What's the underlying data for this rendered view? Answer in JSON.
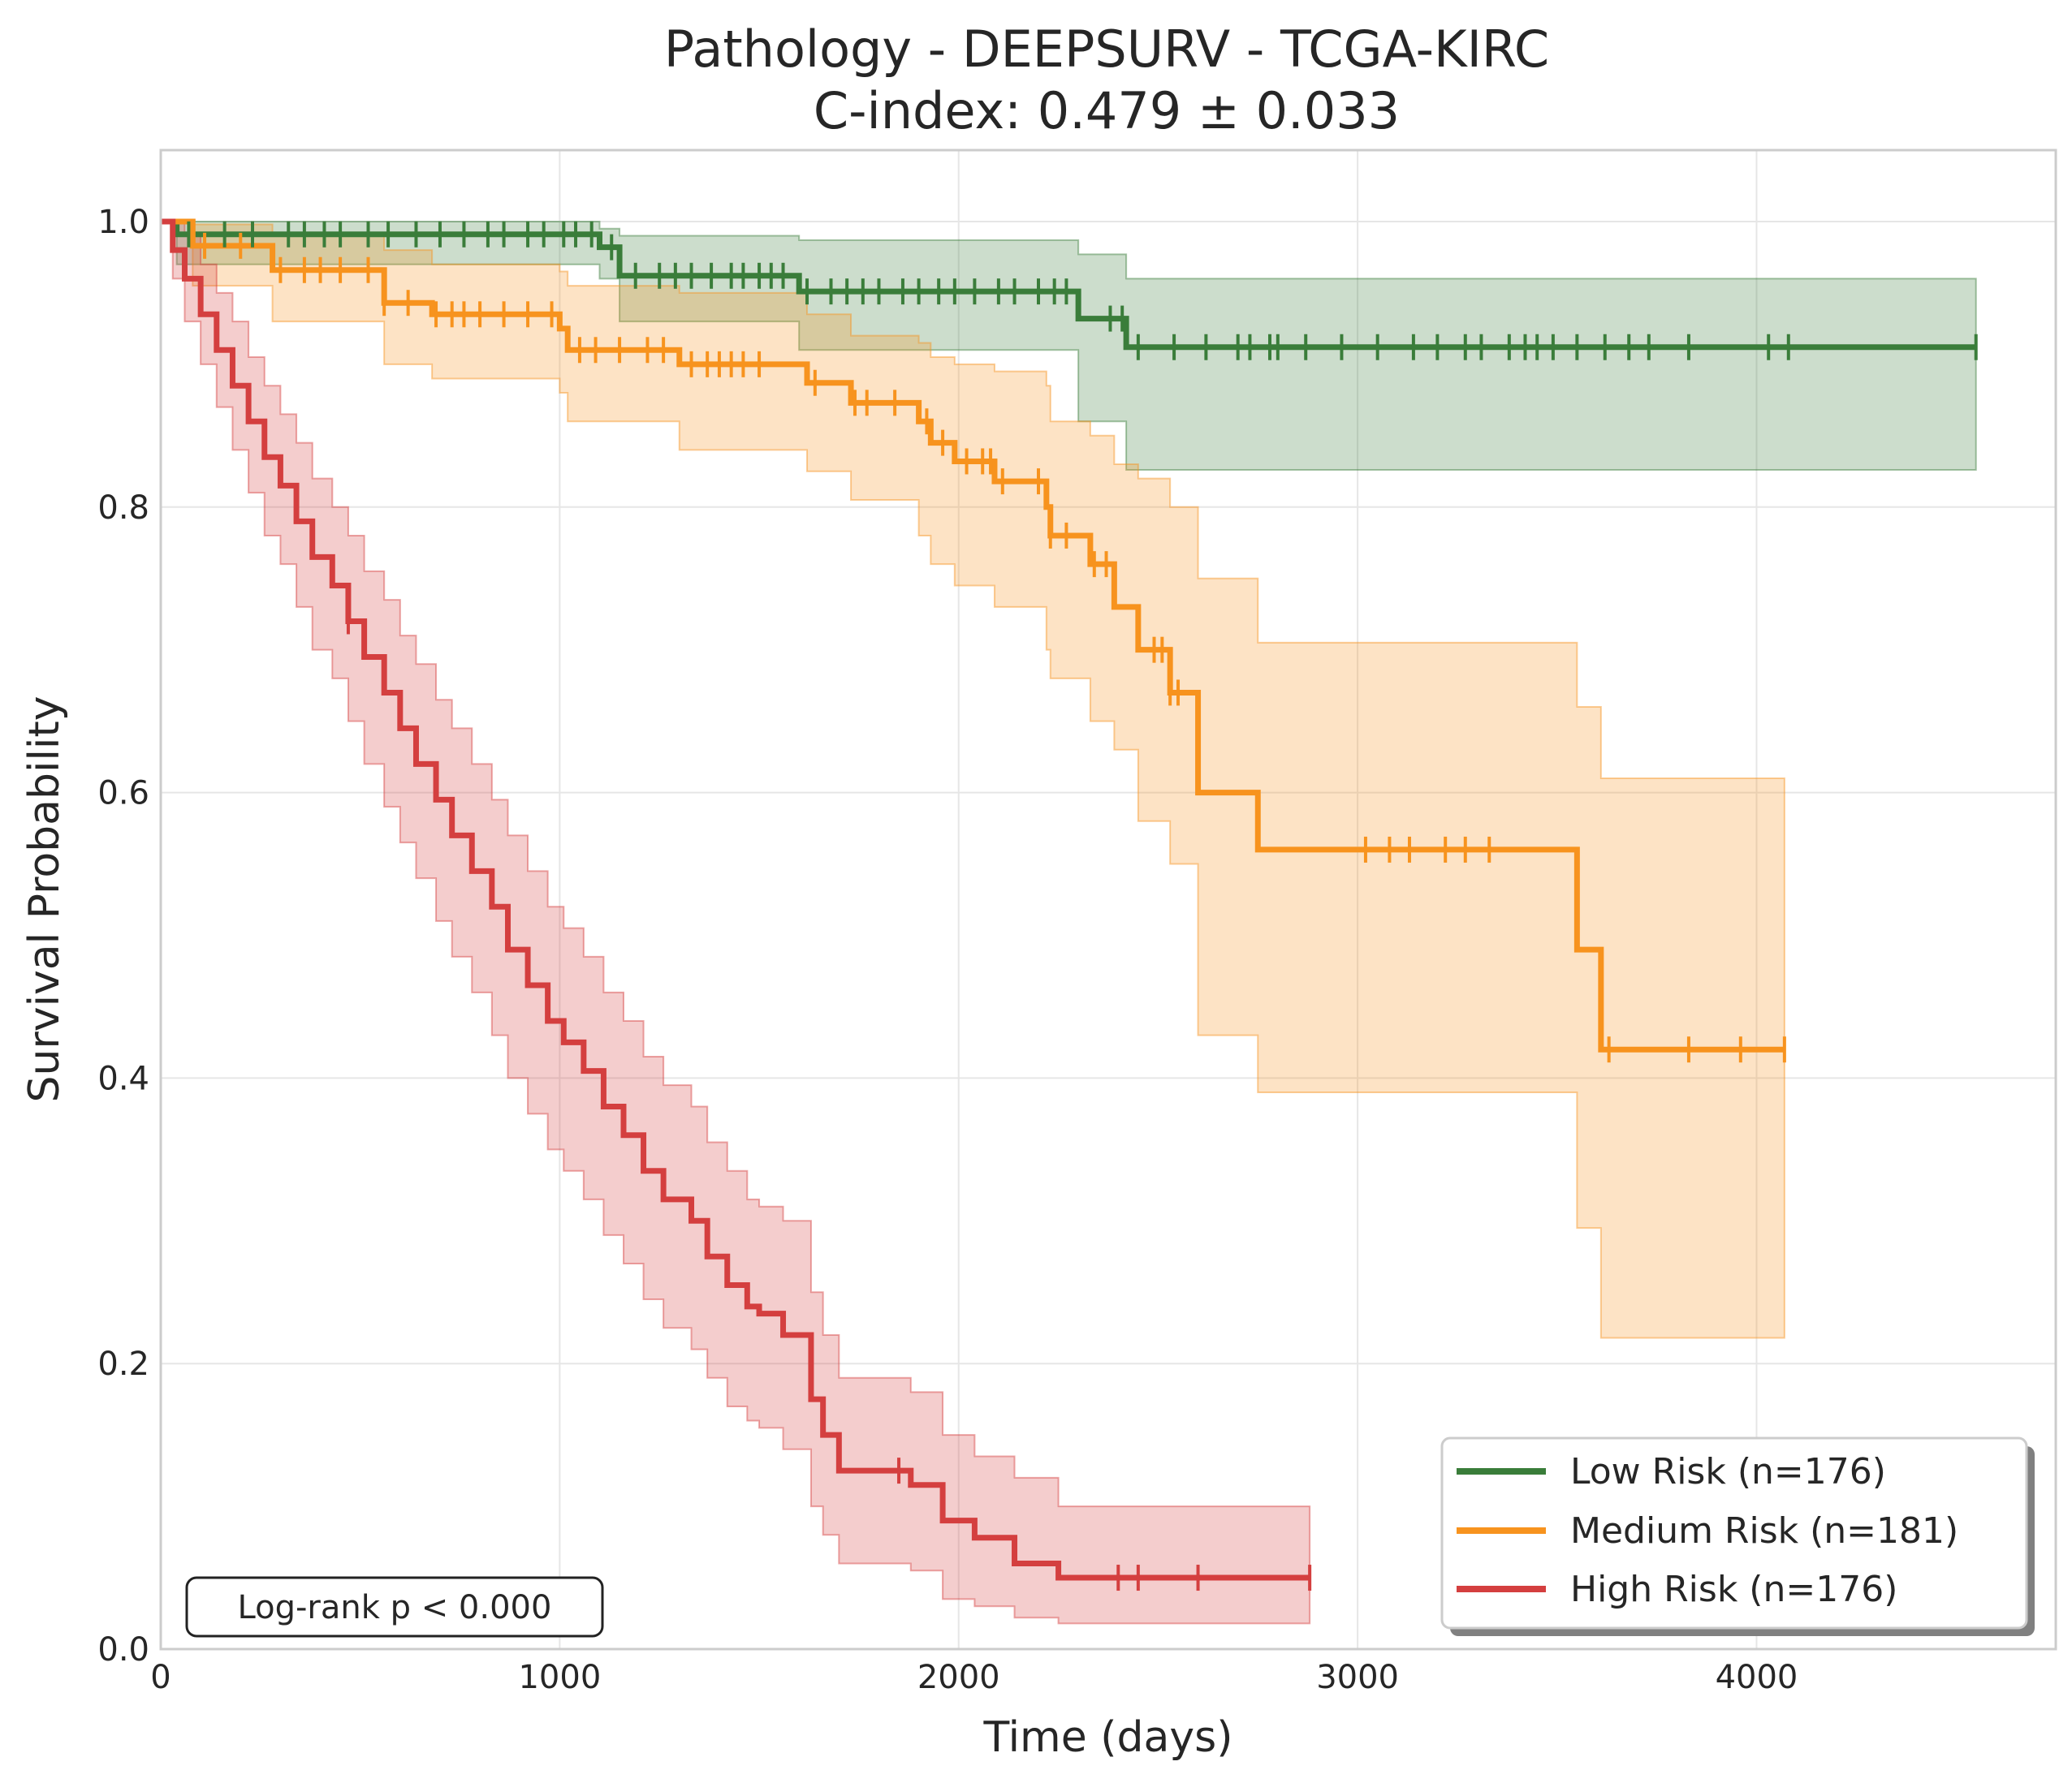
{
  "chart_data": {
    "type": "line",
    "title": "Pathology - DEEPSURV - TCGA-KIRC",
    "subtitle": "C-index: 0.479 ± 0.033",
    "xlabel": "Time (days)",
    "ylabel": "Survival Probability",
    "xlim": [
      0,
      4750
    ],
    "ylim": [
      0,
      1.05
    ],
    "x_ticks": [
      0,
      1000,
      2000,
      3000,
      4000
    ],
    "y_ticks": [
      0.0,
      0.2,
      0.4,
      0.6,
      0.8,
      1.0
    ],
    "x_tick_labels": [
      "0",
      "1000",
      "2000",
      "3000",
      "4000"
    ],
    "y_tick_labels": [
      "0.0",
      "0.2",
      "0.4",
      "0.6",
      "0.8",
      "1.0"
    ],
    "grid": true,
    "legend_position": "bottom-right",
    "annotation": "Log-rank p < 0.000",
    "series": [
      {
        "name": "Low Risk (n=176)",
        "color": "#3a7d3a",
        "x": [
          0,
          40,
          600,
          1100,
          1150,
          1600,
          2300,
          2420,
          4550
        ],
        "y": [
          1.0,
          0.991,
          0.991,
          0.982,
          0.962,
          0.951,
          0.932,
          0.912,
          0.912
        ],
        "ci_lower": [
          1.0,
          0.97,
          0.97,
          0.96,
          0.93,
          0.91,
          0.86,
          0.826,
          0.826
        ],
        "ci_upper": [
          1.0,
          1.0,
          1.0,
          0.995,
          0.99,
          0.987,
          0.977,
          0.96,
          0.96
        ],
        "censor_x": [
          70,
          160,
          230,
          320,
          360,
          410,
          450,
          520,
          570,
          640,
          700,
          760,
          820,
          860,
          920,
          960,
          1010,
          1040,
          1080,
          1130,
          1190,
          1250,
          1290,
          1330,
          1380,
          1430,
          1460,
          1500,
          1530,
          1560,
          1620,
          1680,
          1720,
          1760,
          1800,
          1860,
          1900,
          1950,
          1990,
          2040,
          2100,
          2140,
          2200,
          2240,
          2270,
          2380,
          2410,
          2450,
          2540,
          2620,
          2700,
          2730,
          2780,
          2800,
          2870,
          2960,
          3050,
          3140,
          3200,
          3270,
          3310,
          3380,
          3420,
          3450,
          3490,
          3550,
          3620,
          3680,
          3730,
          3830,
          4030,
          4080,
          4550
        ]
      },
      {
        "name": "Medium Risk (n=181)",
        "color": "#f7931e",
        "x": [
          0,
          80,
          280,
          560,
          680,
          1000,
          1020,
          1300,
          1550,
          1620,
          1730,
          1900,
          1930,
          1990,
          2090,
          2220,
          2230,
          2330,
          2390,
          2450,
          2530,
          2600,
          2750,
          3550,
          3610,
          4070
        ],
        "y": [
          1.0,
          0.983,
          0.966,
          0.943,
          0.935,
          0.925,
          0.91,
          0.9,
          0.9,
          0.887,
          0.873,
          0.86,
          0.845,
          0.832,
          0.818,
          0.8,
          0.78,
          0.76,
          0.73,
          0.7,
          0.67,
          0.6,
          0.56,
          0.49,
          0.42,
          0.42
        ],
        "ci_lower": [
          1.0,
          0.955,
          0.93,
          0.9,
          0.89,
          0.88,
          0.86,
          0.84,
          0.84,
          0.825,
          0.805,
          0.78,
          0.76,
          0.745,
          0.73,
          0.7,
          0.68,
          0.65,
          0.63,
          0.58,
          0.55,
          0.43,
          0.39,
          0.295,
          0.218,
          0.218
        ],
        "ci_upper": [
          1.0,
          0.998,
          0.99,
          0.98,
          0.97,
          0.965,
          0.955,
          0.95,
          0.95,
          0.935,
          0.92,
          0.915,
          0.905,
          0.9,
          0.895,
          0.885,
          0.86,
          0.85,
          0.83,
          0.82,
          0.8,
          0.75,
          0.705,
          0.66,
          0.61,
          0.61
        ],
        "censor_x": [
          110,
          200,
          300,
          360,
          400,
          450,
          520,
          560,
          620,
          690,
          730,
          760,
          800,
          860,
          920,
          980,
          1050,
          1090,
          1150,
          1220,
          1260,
          1330,
          1370,
          1400,
          1430,
          1460,
          1500,
          1640,
          1740,
          1770,
          1840,
          1920,
          1960,
          2020,
          2060,
          2080,
          2110,
          2200,
          2230,
          2270,
          2340,
          2370,
          2490,
          2510,
          2530,
          2550,
          3020,
          3080,
          3130,
          3220,
          3270,
          3330,
          3630,
          3830,
          3960,
          4070
        ]
      },
      {
        "name": "High Risk (n=176)",
        "color": "#d43f3f",
        "x": [
          0,
          30,
          60,
          100,
          140,
          180,
          220,
          260,
          300,
          340,
          380,
          430,
          470,
          510,
          560,
          600,
          640,
          690,
          730,
          780,
          830,
          870,
          920,
          970,
          1010,
          1060,
          1110,
          1160,
          1210,
          1260,
          1330,
          1370,
          1420,
          1470,
          1500,
          1560,
          1630,
          1660,
          1700,
          1880,
          1960,
          2040,
          2140,
          2250,
          2880
        ],
        "y": [
          1.0,
          0.98,
          0.96,
          0.935,
          0.91,
          0.885,
          0.86,
          0.835,
          0.815,
          0.79,
          0.765,
          0.745,
          0.72,
          0.695,
          0.67,
          0.645,
          0.62,
          0.595,
          0.57,
          0.545,
          0.52,
          0.49,
          0.465,
          0.44,
          0.425,
          0.405,
          0.38,
          0.36,
          0.335,
          0.315,
          0.3,
          0.275,
          0.255,
          0.24,
          0.235,
          0.22,
          0.175,
          0.15,
          0.125,
          0.115,
          0.09,
          0.078,
          0.06,
          0.05,
          0.05
        ],
        "ci_lower": [
          1.0,
          0.96,
          0.93,
          0.9,
          0.87,
          0.84,
          0.81,
          0.78,
          0.76,
          0.73,
          0.7,
          0.68,
          0.65,
          0.62,
          0.59,
          0.565,
          0.54,
          0.51,
          0.485,
          0.46,
          0.43,
          0.4,
          0.375,
          0.35,
          0.335,
          0.315,
          0.29,
          0.27,
          0.245,
          0.225,
          0.21,
          0.19,
          0.17,
          0.16,
          0.155,
          0.14,
          0.1,
          0.08,
          0.06,
          0.055,
          0.035,
          0.03,
          0.022,
          0.018,
          0.018
        ],
        "ci_upper": [
          1.0,
          1.0,
          0.99,
          0.97,
          0.95,
          0.93,
          0.905,
          0.885,
          0.865,
          0.845,
          0.82,
          0.8,
          0.78,
          0.755,
          0.735,
          0.71,
          0.69,
          0.665,
          0.645,
          0.62,
          0.595,
          0.57,
          0.545,
          0.52,
          0.505,
          0.485,
          0.46,
          0.44,
          0.415,
          0.395,
          0.38,
          0.355,
          0.335,
          0.315,
          0.31,
          0.3,
          0.25,
          0.22,
          0.19,
          0.18,
          0.15,
          0.135,
          0.12,
          0.1,
          0.1
        ],
        "censor_x": [
          470,
          1850,
          2400,
          2450,
          2600,
          2880
        ]
      }
    ]
  }
}
